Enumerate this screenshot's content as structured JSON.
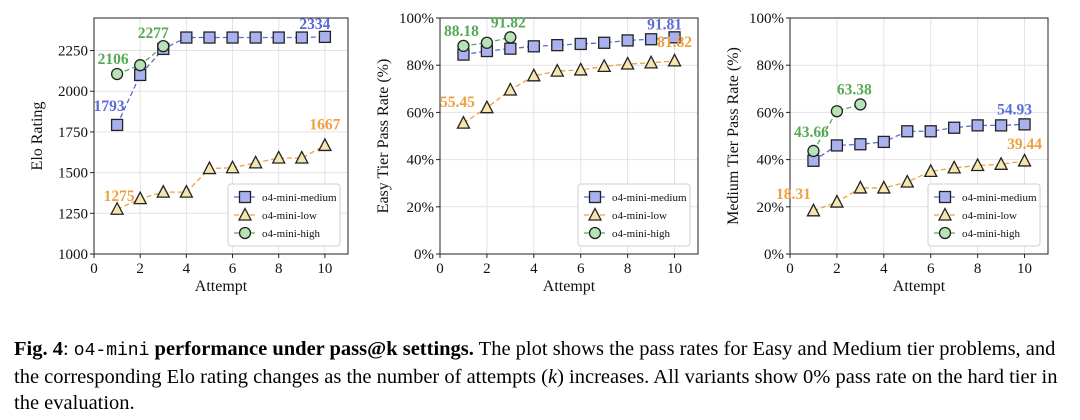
{
  "chart_data": [
    {
      "type": "line",
      "xlabel": "Attempt",
      "ylabel": "Elo Rating",
      "xlim": [
        0,
        11
      ],
      "ylim": [
        1000,
        2450
      ],
      "xticks": [
        0,
        2,
        4,
        6,
        8,
        10
      ],
      "yticks": [
        1000,
        1250,
        1500,
        1750,
        2000,
        2250
      ],
      "ytick_format": "plain",
      "grid": true,
      "legend_position": "bottom-right",
      "series": [
        {
          "name": "o4-mini-medium",
          "color": "#5a6ad6",
          "fill": "#a9b2ef",
          "marker": "square",
          "x": [
            1,
            2,
            3,
            4,
            5,
            6,
            7,
            8,
            9,
            10
          ],
          "y": [
            1793,
            2100,
            2260,
            2330,
            2330,
            2330,
            2330,
            2330,
            2330,
            2334
          ]
        },
        {
          "name": "o4-mini-low",
          "color": "#f0a040",
          "fill": "#f5e6b0",
          "marker": "triangle",
          "x": [
            1,
            2,
            3,
            4,
            5,
            6,
            7,
            8,
            9,
            10
          ],
          "y": [
            1275,
            1340,
            1380,
            1380,
            1525,
            1530,
            1560,
            1590,
            1590,
            1667
          ]
        },
        {
          "name": "o4-mini-high",
          "color": "#55aa55",
          "fill": "#b7e4b7",
          "marker": "circle",
          "x": [
            1,
            2,
            3
          ],
          "y": [
            2106,
            2160,
            2277
          ]
        }
      ],
      "annotations": [
        {
          "text": "1793",
          "series": 0,
          "x": 1,
          "y": 1793
        },
        {
          "text": "2334",
          "series": 0,
          "x": 10,
          "y": 2334
        },
        {
          "text": "1275",
          "series": 1,
          "x": 1,
          "y": 1275
        },
        {
          "text": "1667",
          "series": 1,
          "x": 10,
          "y": 1667
        },
        {
          "text": "2106",
          "series": 2,
          "x": 1,
          "y": 2106
        },
        {
          "text": "2277",
          "series": 2,
          "x": 3,
          "y": 2277
        }
      ]
    },
    {
      "type": "line",
      "xlabel": "Attempt",
      "ylabel": "Easy Tier Pass Rate (%)",
      "xlim": [
        0,
        11
      ],
      "ylim": [
        0,
        100
      ],
      "xticks": [
        0,
        2,
        4,
        6,
        8,
        10
      ],
      "yticks": [
        0,
        20,
        40,
        60,
        80,
        100
      ],
      "ytick_format": "percent",
      "grid": true,
      "legend_position": "bottom-right",
      "series": [
        {
          "name": "o4-mini-medium",
          "color": "#5a6ad6",
          "fill": "#a9b2ef",
          "marker": "square",
          "x": [
            1,
            2,
            3,
            4,
            5,
            6,
            7,
            8,
            9,
            10
          ],
          "y": [
            84.5,
            86,
            87,
            88,
            88.5,
            89,
            89.5,
            90.5,
            91,
            91.81
          ]
        },
        {
          "name": "o4-mini-low",
          "color": "#f0a040",
          "fill": "#f5e6b0",
          "marker": "triangle",
          "x": [
            1,
            2,
            3,
            4,
            5,
            6,
            7,
            8,
            9,
            10
          ],
          "y": [
            55.45,
            62,
            69.5,
            75.5,
            77.5,
            78,
            79.5,
            80.5,
            81,
            81.82
          ]
        },
        {
          "name": "o4-mini-high",
          "color": "#55aa55",
          "fill": "#b7e4b7",
          "marker": "circle",
          "x": [
            1,
            2,
            3
          ],
          "y": [
            88.18,
            89.5,
            91.82
          ]
        }
      ],
      "annotations": [
        {
          "text": "91.81",
          "series": 0,
          "x": 10,
          "y": 91.81
        },
        {
          "text": "55.45",
          "series": 1,
          "x": 1,
          "y": 55.45
        },
        {
          "text": "81.82",
          "series": 1,
          "x": 10,
          "y": 81.82
        },
        {
          "text": "88.18",
          "series": 2,
          "x": 1,
          "y": 88.18
        },
        {
          "text": "91.82",
          "series": 2,
          "x": 3,
          "y": 91.82
        }
      ]
    },
    {
      "type": "line",
      "xlabel": "Attempt",
      "ylabel": "Medium Tier Pass Rate (%)",
      "xlim": [
        0,
        11
      ],
      "ylim": [
        0,
        100
      ],
      "xticks": [
        0,
        2,
        4,
        6,
        8,
        10
      ],
      "yticks": [
        0,
        20,
        40,
        60,
        80,
        100
      ],
      "ytick_format": "percent",
      "grid": true,
      "legend_position": "bottom-right",
      "series": [
        {
          "name": "o4-mini-medium",
          "color": "#5a6ad6",
          "fill": "#a9b2ef",
          "marker": "square",
          "x": [
            1,
            2,
            3,
            4,
            5,
            6,
            7,
            8,
            9,
            10
          ],
          "y": [
            39.5,
            46,
            46.5,
            47.5,
            52,
            52,
            53.5,
            54.5,
            54.5,
            54.93
          ]
        },
        {
          "name": "o4-mini-low",
          "color": "#f0a040",
          "fill": "#f5e6b0",
          "marker": "triangle",
          "x": [
            1,
            2,
            3,
            4,
            5,
            6,
            7,
            8,
            9,
            10
          ],
          "y": [
            18.31,
            22,
            28,
            28,
            30.5,
            35,
            36.5,
            37.5,
            38,
            39.44
          ]
        },
        {
          "name": "o4-mini-high",
          "color": "#55aa55",
          "fill": "#b7e4b7",
          "marker": "circle",
          "x": [
            1,
            2,
            3
          ],
          "y": [
            43.66,
            60.5,
            63.38
          ]
        }
      ],
      "annotations": [
        {
          "text": "54.93",
          "series": 0,
          "x": 10,
          "y": 54.93
        },
        {
          "text": "18.31",
          "series": 1,
          "x": 1,
          "y": 18.31
        },
        {
          "text": "39.44",
          "series": 1,
          "x": 10,
          "y": 39.44
        },
        {
          "text": "43.66",
          "series": 2,
          "x": 1,
          "y": 43.66
        },
        {
          "text": "63.38",
          "series": 2,
          "x": 3,
          "y": 63.38
        }
      ]
    }
  ],
  "caption": {
    "label": "Fig. 4",
    "colon": ":",
    "code": "o4-mini",
    "bold": " performance under pass@k settings.",
    "text_before_k": " The plot shows the pass rates for Easy and Medium tier problems, and the corresponding Elo rating changes as the number of attempts (",
    "k": "k",
    "text_after_k": ") increases. All variants show 0% pass rate on the hard tier in the evaluation."
  }
}
